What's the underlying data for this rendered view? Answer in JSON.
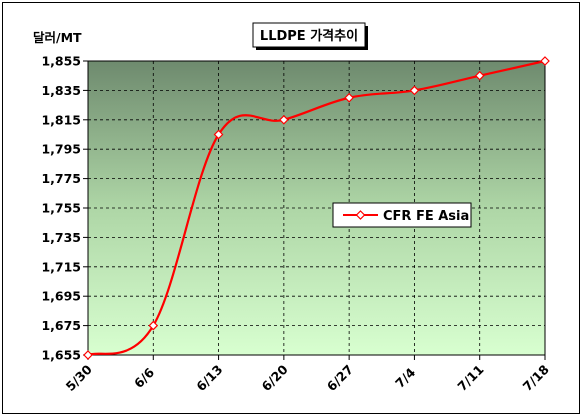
{
  "chart_data": {
    "type": "line",
    "title": "LLDPE 가격추이",
    "ylabel": "달러/MT",
    "xlabel": "",
    "x": [
      "5/30",
      "6/6",
      "6/13",
      "6/20",
      "6/27",
      "7/4",
      "7/11",
      "7/18"
    ],
    "ylim": [
      1655,
      1855
    ],
    "yticks": [
      1655,
      1675,
      1695,
      1715,
      1735,
      1755,
      1775,
      1795,
      1815,
      1835,
      1855
    ],
    "ytick_labels": [
      "1,655",
      "1,675",
      "1,695",
      "1,715",
      "1,735",
      "1,755",
      "1,775",
      "1,795",
      "1,815",
      "1,835",
      "1,855"
    ],
    "series": [
      {
        "name": "CFR FE Asia",
        "color": "#ff0000",
        "values": [
          1655,
          1675,
          1805,
          1815,
          1830,
          1835,
          1845,
          1855
        ]
      }
    ],
    "legend": "center-right",
    "grid": true,
    "plot_background": "green-gradient"
  }
}
